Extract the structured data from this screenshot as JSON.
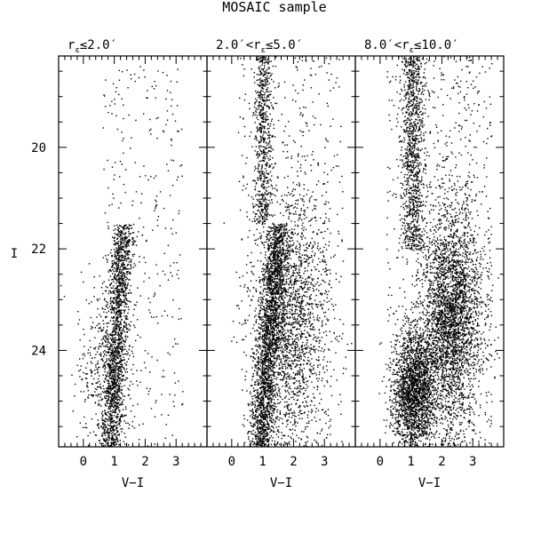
{
  "chart_data": {
    "type": "scatter",
    "title": "MOSAIC sample",
    "ylabel": "I",
    "xlabel": "V−I",
    "y_inverted": true,
    "shared_ylim": [
      25.9,
      18.2
    ],
    "yticks": [
      20,
      22,
      24
    ],
    "xlim": [
      -0.8,
      4.0
    ],
    "xticks": [
      0,
      1,
      2,
      3
    ],
    "panels": [
      {
        "label_parts": {
          "main": "r",
          "sub": "ε",
          "rest": "≤2.0′"
        },
        "xlabel": "V−I",
        "point_count": 2400,
        "components": [
          {
            "desc": "red giant branch",
            "weight": 0.68,
            "x_at_bright": 1.3,
            "x_at_faint": 0.85,
            "y_range": [
              21.5,
              25.9
            ],
            "x_sigma": 0.18
          },
          {
            "desc": "broad faint clump",
            "weight": 0.18,
            "x_center": 0.7,
            "x_sigma": 0.45,
            "y_center": 24.4,
            "y_sigma": 0.8
          },
          {
            "desc": "foreground field",
            "weight": 0.14,
            "x_range": [
              0.6,
              3.2
            ],
            "y_range": [
              18.4,
              25.9
            ]
          }
        ]
      },
      {
        "label_parts": {
          "main": "2.0′<r",
          "sub": "ε",
          "rest": "≤5.0′"
        },
        "xlabel": "V−I",
        "point_count": 5200,
        "components": [
          {
            "desc": "red giant branch",
            "weight": 0.4,
            "x_at_bright": 1.5,
            "x_at_faint": 0.9,
            "y_range": [
              21.5,
              25.9
            ],
            "x_sigma": 0.2
          },
          {
            "desc": "red field sequence",
            "weight": 0.38,
            "x_center": 1.9,
            "x_sigma": 0.6,
            "y_center": 23.4,
            "y_sigma": 1.3
          },
          {
            "desc": "blue sequence",
            "weight": 0.12,
            "x_center": 1.0,
            "x_sigma": 0.15,
            "y_range": [
              18.2,
              21.5
            ]
          },
          {
            "desc": "diffuse field",
            "weight": 0.1,
            "x_range": [
              0.2,
              3.6
            ],
            "y_range": [
              18.2,
              25.9
            ]
          }
        ]
      },
      {
        "label_parts": {
          "main": "8.0′<r",
          "sub": "ε",
          "rest": "≤10.0′"
        },
        "xlabel": "V−I",
        "point_count": 7000,
        "components": [
          {
            "desc": "faint blue plume",
            "weight": 0.3,
            "x_center": 1.1,
            "x_sigma": 0.35,
            "y_center": 24.8,
            "y_sigma": 0.6
          },
          {
            "desc": "red field sequence",
            "weight": 0.45,
            "x_center": 2.3,
            "x_sigma": 0.5,
            "y_center": 23.3,
            "y_sigma": 1.1
          },
          {
            "desc": "blue sequence",
            "weight": 0.15,
            "x_center": 1.05,
            "x_sigma": 0.2,
            "y_range": [
              18.2,
              22.0
            ]
          },
          {
            "desc": "diffuse field",
            "weight": 0.1,
            "x_range": [
              0.2,
              3.6
            ],
            "y_range": [
              18.2,
              25.9
            ]
          }
        ]
      }
    ]
  }
}
